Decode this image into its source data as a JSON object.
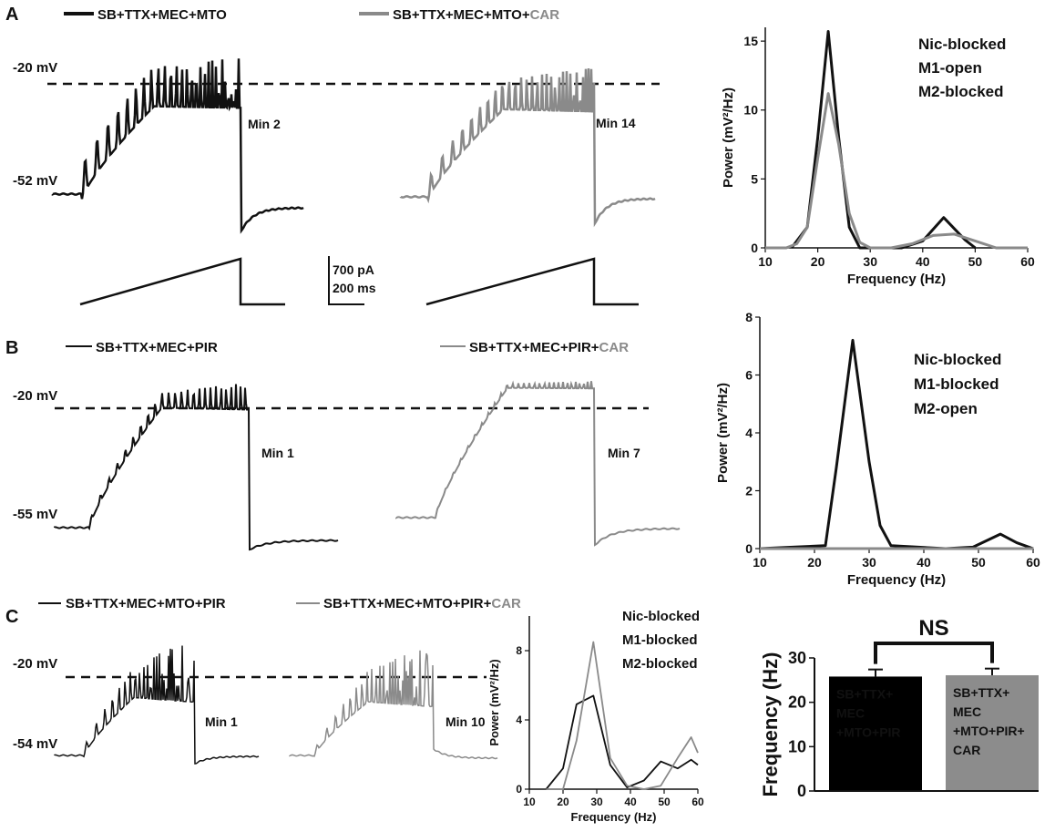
{
  "colors": {
    "black": "#111111",
    "gray": "#8a8a8a",
    "bar_black": "#000000",
    "bar_gray": "#8c8c8c"
  },
  "panels": {
    "A": {
      "letter": "A",
      "control_label": "SB+TTX+MEC+MTO",
      "drug_label_prefix": "SB+TTX+MEC+MTO+",
      "drug_label_suffix": "CAR",
      "v_top": "-20 mV",
      "v_bottom": "-52 mV",
      "time_control": "Min 2",
      "time_drug": "Min 14",
      "scale_current": "700 pA",
      "scale_time": "200 ms"
    },
    "B": {
      "letter": "B",
      "control_label": "SB+TTX+MEC+PIR",
      "drug_label_prefix": "SB+TTX+MEC+PIR+",
      "drug_label_suffix": "CAR",
      "v_top": "-20 mV",
      "v_bottom": "-55 mV",
      "time_control": "Min 1",
      "time_drug": "Min 7"
    },
    "C": {
      "letter": "C",
      "control_label": "SB+TTX+MEC+MTO+PIR",
      "drug_label_prefix": "SB+TTX+MEC+MTO+PIR+",
      "drug_label_suffix": "CAR",
      "v_top": "-20 mV",
      "v_bottom": "-54 mV",
      "time_control": "Min 1",
      "time_drug": "Min 10"
    }
  },
  "chart_data": [
    {
      "id": "spectrum-A",
      "type": "line",
      "xlabel": "Frequency (Hz)",
      "ylabel": "Power (mV²/Hz)",
      "xlim": [
        10,
        60
      ],
      "ylim": [
        0,
        16
      ],
      "xticks": [
        10,
        20,
        30,
        40,
        50,
        60
      ],
      "yticks": [
        0,
        5,
        10,
        15
      ],
      "annotation": [
        "Nic-blocked",
        "M1-open",
        "M2-blocked"
      ],
      "series": [
        {
          "name": "control",
          "color": "black",
          "x": [
            15,
            18,
            20,
            22,
            24,
            26,
            28,
            36,
            40,
            44,
            48,
            50
          ],
          "y": [
            0,
            1.5,
            8,
            15.7,
            8,
            1.5,
            0,
            0,
            0.5,
            2.2,
            0.6,
            0
          ]
        },
        {
          "name": "CAR",
          "color": "gray",
          "x": [
            10,
            14,
            16,
            18,
            20,
            22,
            24,
            26,
            28,
            30,
            34,
            38,
            42,
            46,
            50,
            54,
            60
          ],
          "y": [
            0,
            0,
            0.3,
            1.5,
            6.5,
            11.2,
            7.5,
            2.5,
            0.4,
            0,
            0,
            0.3,
            0.9,
            1.0,
            0.5,
            0,
            0
          ]
        }
      ]
    },
    {
      "id": "spectrum-B",
      "type": "line",
      "xlabel": "Frequency (Hz)",
      "ylabel": "Power (mV²/Hz)",
      "xlim": [
        10,
        60
      ],
      "ylim": [
        0,
        8
      ],
      "xticks": [
        10,
        20,
        30,
        40,
        50,
        60
      ],
      "yticks": [
        0,
        2,
        4,
        6,
        8
      ],
      "annotation": [
        "Nic-blocked",
        "M1-blocked",
        "M2-open"
      ],
      "series": [
        {
          "name": "control",
          "color": "black",
          "x": [
            10,
            22,
            24,
            27,
            30,
            32,
            34,
            44,
            49,
            54,
            57,
            60
          ],
          "y": [
            0,
            0.1,
            2.8,
            7.2,
            3.0,
            0.8,
            0.1,
            0,
            0.05,
            0.5,
            0.2,
            0
          ]
        },
        {
          "name": "CAR",
          "color": "gray",
          "x": [
            10,
            60
          ],
          "y": [
            0,
            0
          ]
        }
      ]
    },
    {
      "id": "spectrum-C",
      "type": "line",
      "xlabel": "Frequency (Hz)",
      "ylabel": "Power (mV²/Hz)",
      "xlim": [
        10,
        60
      ],
      "ylim": [
        0,
        10
      ],
      "xticks": [
        10,
        20,
        30,
        40,
        50,
        60
      ],
      "yticks": [
        0,
        4,
        8
      ],
      "annotation": [
        "Nic-blocked",
        "M1-blocked",
        "M2-blocked"
      ],
      "series": [
        {
          "name": "control",
          "color": "black",
          "x": [
            15,
            20,
            24,
            29,
            34,
            39,
            44,
            49,
            54,
            58,
            60
          ],
          "y": [
            0,
            1.2,
            4.9,
            5.4,
            1.4,
            0.1,
            0.5,
            1.6,
            1.2,
            1.7,
            1.4
          ]
        },
        {
          "name": "CAR",
          "color": "gray",
          "x": [
            15,
            20,
            24,
            29,
            34,
            39,
            44,
            49,
            54,
            58,
            60
          ],
          "y": [
            0,
            0,
            2.8,
            8.5,
            1.8,
            0.2,
            0,
            0.2,
            1.8,
            3.0,
            2.1
          ]
        }
      ]
    },
    {
      "id": "frequency-bars",
      "type": "bar",
      "ylabel": "Frequency (Hz)",
      "ylim": [
        0,
        30
      ],
      "yticks": [
        0,
        10,
        20,
        30
      ],
      "categories": [
        "SB+TTX+MEC+MTO+PIR",
        "SB+TTX+MEC+MTO+PIR+CAR"
      ],
      "bar_labels": [
        [
          "SB+TTX+",
          "MEC",
          "+MTO+PIR"
        ],
        [
          "SB+TTX+",
          "MEC",
          "+MTO+PIR+",
          "CAR"
        ]
      ],
      "values": [
        25.8,
        26.1
      ],
      "errors": [
        1.6,
        1.5
      ],
      "colors": [
        "#000000",
        "#8c8c8c"
      ],
      "significance": "NS"
    }
  ]
}
